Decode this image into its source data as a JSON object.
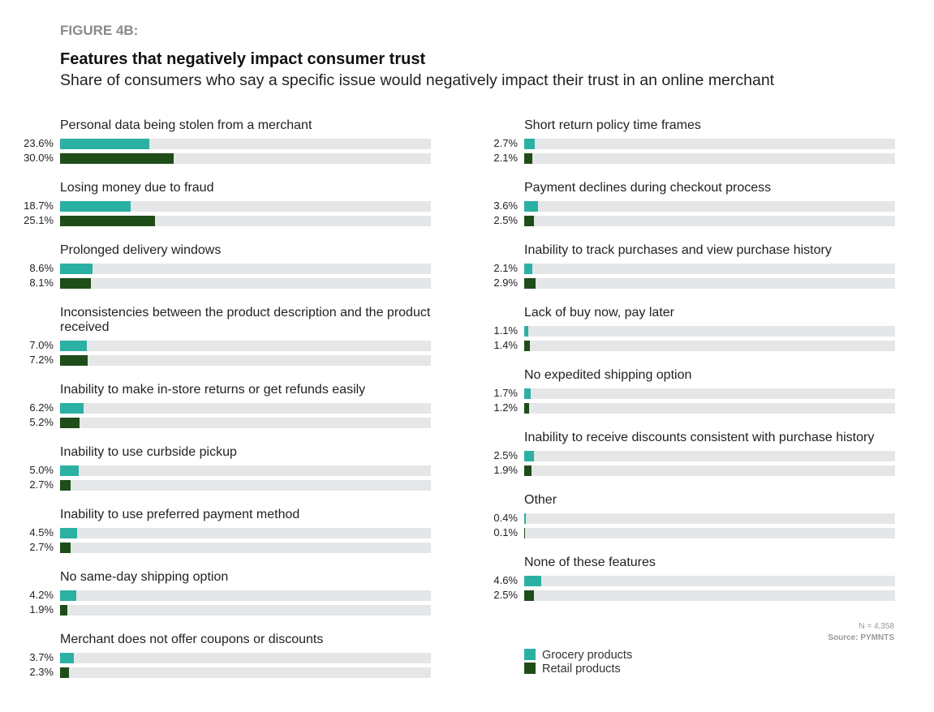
{
  "header": {
    "figure": "FIGURE 4B:",
    "title": "Features that negatively impact consumer trust",
    "subtitle": "Share of consumers who say a specific issue would negatively impact their trust in an online merchant"
  },
  "footer": {
    "n": "N = 4,358",
    "source": "Source: PYMNTS"
  },
  "colors": {
    "grocery": "#2bb0a4",
    "retail": "#1f4d1a",
    "track": "#e5e6e8"
  },
  "chart_data": {
    "type": "bar",
    "orientation": "horizontal",
    "xlim": [
      0,
      100
    ],
    "series": [
      {
        "name": "Grocery products",
        "color": "#2bb0a4"
      },
      {
        "name": "Retail products",
        "color": "#1f4d1a"
      }
    ],
    "legend": "bottom-right",
    "columns": [
      [
        {
          "label": "Personal data being stolen from a merchant",
          "values": [
            23.6,
            30.0
          ],
          "labels": [
            "23.6%",
            "30.0%"
          ]
        },
        {
          "label": "Losing money due to fraud",
          "values": [
            18.7,
            25.1
          ],
          "labels": [
            "18.7%",
            "25.1%"
          ]
        },
        {
          "label": "Prolonged delivery windows",
          "values": [
            8.6,
            8.1
          ],
          "labels": [
            "8.6%",
            "8.1%"
          ]
        },
        {
          "label": "Inconsistencies between the product description and the product received",
          "values": [
            7.0,
            7.2
          ],
          "labels": [
            "7.0%",
            "7.2%"
          ]
        },
        {
          "label": "Inability to make in-store returns or get refunds easily",
          "values": [
            6.2,
            5.2
          ],
          "labels": [
            "6.2%",
            "5.2%"
          ]
        },
        {
          "label": "Inability to use curbside pickup",
          "values": [
            5.0,
            2.7
          ],
          "labels": [
            "5.0%",
            "2.7%"
          ]
        },
        {
          "label": "Inability to use preferred payment method",
          "values": [
            4.5,
            2.7
          ],
          "labels": [
            "4.5%",
            "2.7%"
          ]
        },
        {
          "label": "No same-day shipping option",
          "values": [
            4.2,
            1.9
          ],
          "labels": [
            "4.2%",
            "1.9%"
          ]
        },
        {
          "label": "Merchant does not offer coupons or discounts",
          "values": [
            3.7,
            2.3
          ],
          "labels": [
            "3.7%",
            "2.3%"
          ]
        }
      ],
      [
        {
          "label": "Short return policy time frames",
          "values": [
            2.7,
            2.1
          ],
          "labels": [
            "2.7%",
            "2.1%"
          ]
        },
        {
          "label": "Payment declines during checkout process",
          "values": [
            3.6,
            2.5
          ],
          "labels": [
            "3.6%",
            "2.5%"
          ]
        },
        {
          "label": "Inability to track purchases and view purchase history",
          "values": [
            2.1,
            2.9
          ],
          "labels": [
            "2.1%",
            "2.9%"
          ]
        },
        {
          "label": "Lack of buy now, pay later",
          "values": [
            1.1,
            1.4
          ],
          "labels": [
            "1.1%",
            "1.4%"
          ]
        },
        {
          "label": "No expedited shipping option",
          "values": [
            1.7,
            1.2
          ],
          "labels": [
            "1.7%",
            "1.2%"
          ]
        },
        {
          "label": "Inability to receive discounts consistent with purchase history",
          "values": [
            2.5,
            1.9
          ],
          "labels": [
            "2.5%",
            "1.9%"
          ]
        },
        {
          "label": "Other",
          "values": [
            0.4,
            0.1
          ],
          "labels": [
            "0.4%",
            "0.1%"
          ]
        },
        {
          "label": "None of these features",
          "values": [
            4.6,
            2.5
          ],
          "labels": [
            "4.6%",
            "2.5%"
          ]
        }
      ]
    ]
  }
}
